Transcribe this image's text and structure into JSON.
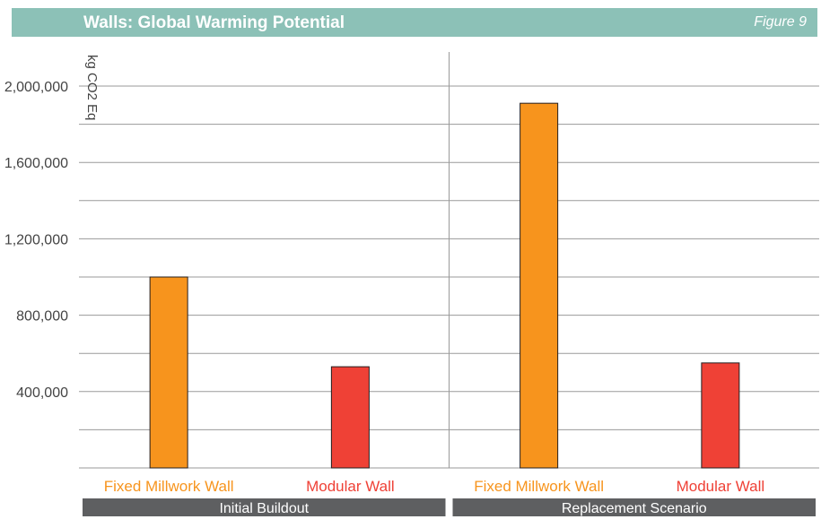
{
  "header": {
    "title": "Walls: Global Warming Potential",
    "figure_label": "Figure 9"
  },
  "colors": {
    "header_bg": "#8cc1b7",
    "group_bar_bg": "#5e5f61",
    "fixed_millwork": "#f7941d",
    "modular": "#ef4136",
    "grid": "#9a9a9a",
    "axis_text": "#444444"
  },
  "chart_data": {
    "type": "bar",
    "title": "Walls: Global Warming Potential",
    "ylabel": "kg CO2 Eq",
    "ylim": [
      0,
      2000000
    ],
    "yticks": [
      400000,
      800000,
      1200000,
      1600000,
      2000000
    ],
    "ytick_labels": [
      "400,000",
      "800,000",
      "1,200,000",
      "1,600,000",
      "2,000,000"
    ],
    "groups": [
      {
        "name": "Initial Buildout",
        "bars": [
          {
            "label": "Fixed Millwork Wall",
            "value": 1000000,
            "color": "#f7941d"
          },
          {
            "label": "Modular Wall",
            "value": 530000,
            "color": "#ef4136"
          }
        ]
      },
      {
        "name": "Replacement Scenario",
        "bars": [
          {
            "label": "Fixed Millwork Wall",
            "value": 1910000,
            "color": "#f7941d"
          },
          {
            "label": "Modular Wall",
            "value": 550000,
            "color": "#ef4136"
          }
        ]
      }
    ],
    "grid": true,
    "legend": "none"
  }
}
